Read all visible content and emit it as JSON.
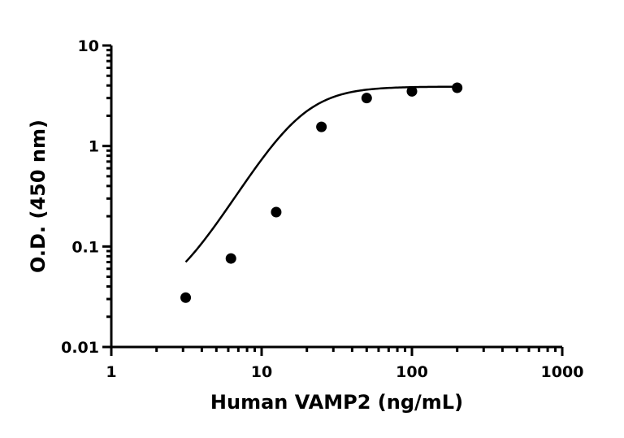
{
  "chart_data": {
    "type": "scatter",
    "xlabel": "Human VAMP2 (ng/mL)",
    "ylabel": "O.D. (450 nm)",
    "x_scale": "log",
    "y_scale": "log",
    "xlim": [
      1,
      1000
    ],
    "ylim": [
      0.01,
      10
    ],
    "x_ticks": [
      "1",
      "10",
      "100",
      "1000"
    ],
    "y_ticks": [
      "0.01",
      "0.1",
      "1",
      "10"
    ],
    "grid": false,
    "legend": "none",
    "point_color": "#000000",
    "series": [
      {
        "x": [
          3.125,
          6.25,
          12.5,
          25,
          50,
          100,
          200
        ],
        "y": [
          0.031,
          0.076,
          0.22,
          1.55,
          3.0,
          3.5,
          3.8
        ]
      }
    ],
    "fit_curve": {
      "model": "4PL",
      "bottom": 0.026,
      "top": 3.9,
      "ec50": 18,
      "hill": 2.55
    }
  }
}
